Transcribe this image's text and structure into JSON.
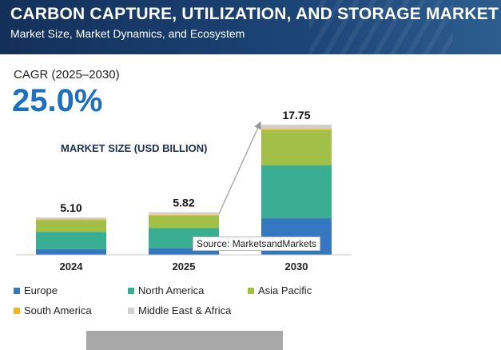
{
  "header": {
    "title": "CARBON CAPTURE, UTILIZATION, AND STORAGE MARKET",
    "subtitle": "Market Size, Market Dynamics, and Ecosystem"
  },
  "cagr": {
    "label": "CAGR (2025–2030)",
    "value": "25.0%"
  },
  "source": "Source: MarketsandMarkets",
  "chart_data": {
    "type": "bar",
    "stacked": true,
    "title": "MARKET SIZE (USD BILLION)",
    "categories": [
      "2024",
      "2025",
      "2030"
    ],
    "totals": [
      "5.10",
      "5.82",
      "17.75"
    ],
    "series": [
      {
        "name": "Europe",
        "color": "#3577c0",
        "values": [
          0.8,
          0.95,
          5.0
        ]
      },
      {
        "name": "North America",
        "color": "#3aae92",
        "values": [
          2.35,
          2.7,
          7.2
        ]
      },
      {
        "name": "Asia Pacific",
        "color": "#a2bf48",
        "values": [
          1.6,
          1.7,
          4.8
        ]
      },
      {
        "name": "South America",
        "color": "#f2b817",
        "values": [
          0.1,
          0.12,
          0.15
        ]
      },
      {
        "name": "Middle East & Africa",
        "color": "#cfcfcf",
        "values": [
          0.25,
          0.35,
          0.6
        ]
      }
    ],
    "ylim": [
      0,
      17.75
    ],
    "legend_position": "bottom"
  }
}
